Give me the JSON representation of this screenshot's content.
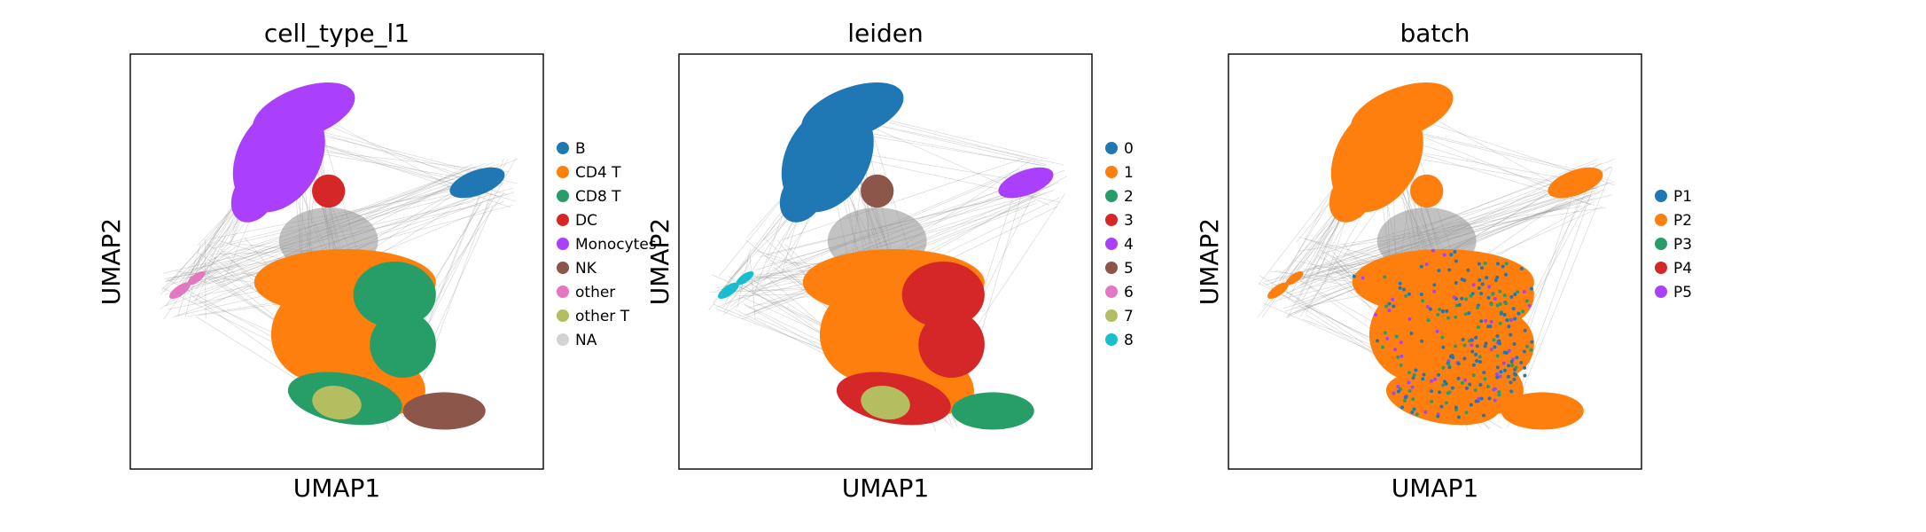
{
  "chart_data": [
    {
      "type": "scatter",
      "title": "cell_type_l1",
      "xlabel": "UMAP1",
      "ylabel": "UMAP2",
      "legend_position": "right",
      "series": [
        {
          "name": "B",
          "color": "#1f77b4"
        },
        {
          "name": "CD4 T",
          "color": "#ff7f0e"
        },
        {
          "name": "CD8 T",
          "color": "#279e68"
        },
        {
          "name": "DC",
          "color": "#d62728"
        },
        {
          "name": "Monocytes",
          "color": "#aa40fc"
        },
        {
          "name": "NK",
          "color": "#8c564b"
        },
        {
          "name": "other",
          "color": "#e377c2"
        },
        {
          "name": "other T",
          "color": "#b5bd61"
        },
        {
          "name": "NA",
          "color": "#d3d3d3"
        }
      ]
    },
    {
      "type": "scatter",
      "title": "leiden",
      "xlabel": "UMAP1",
      "ylabel": "UMAP2",
      "legend_position": "right",
      "series": [
        {
          "name": "0",
          "color": "#1f77b4"
        },
        {
          "name": "1",
          "color": "#ff7f0e"
        },
        {
          "name": "2",
          "color": "#279e68"
        },
        {
          "name": "3",
          "color": "#d62728"
        },
        {
          "name": "4",
          "color": "#aa40fc"
        },
        {
          "name": "5",
          "color": "#8c564b"
        },
        {
          "name": "6",
          "color": "#e377c2"
        },
        {
          "name": "7",
          "color": "#b5bd61"
        },
        {
          "name": "8",
          "color": "#17becf"
        }
      ]
    },
    {
      "type": "scatter",
      "title": "batch",
      "xlabel": "UMAP1",
      "ylabel": "UMAP2",
      "legend_position": "right",
      "series": [
        {
          "name": "P1",
          "color": "#1f77b4"
        },
        {
          "name": "P2",
          "color": "#ff7f0e"
        },
        {
          "name": "P3",
          "color": "#279e68"
        },
        {
          "name": "P4",
          "color": "#d62728"
        },
        {
          "name": "P5",
          "color": "#aa40fc"
        }
      ]
    }
  ]
}
